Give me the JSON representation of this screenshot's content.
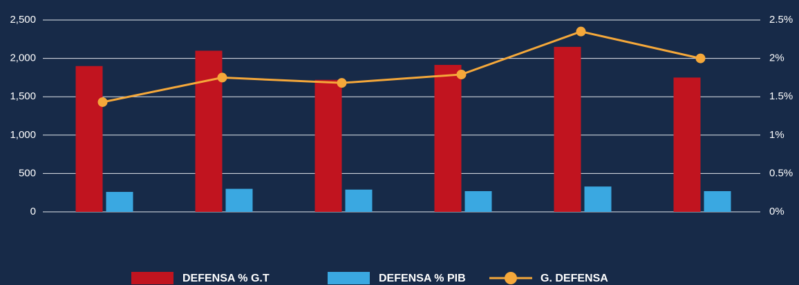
{
  "chart_data": {
    "type": "bar",
    "categories": [
      null,
      null,
      null,
      null,
      null,
      null
    ],
    "series": [
      {
        "name": "DEFENSA % G.T",
        "color": "#c1141f",
        "type": "bar",
        "values": [
          1900,
          2100,
          1720,
          1915,
          2150,
          1750
        ]
      },
      {
        "name": "DEFENSA % PIB",
        "color": "#3aa8e1",
        "type": "bar",
        "values": [
          260,
          300,
          290,
          270,
          330,
          270
        ]
      },
      {
        "name": "G. DEFENSA",
        "color": "#f5a83a",
        "type": "line",
        "axis": "y2",
        "values": [
          1.43,
          1.75,
          1.68,
          1.79,
          2.35,
          2.0
        ]
      }
    ],
    "ylim": [
      0,
      2500
    ],
    "yticks": [
      0,
      500,
      {
        "value": 1000,
        "label": "1,000"
      },
      {
        "value": 1500,
        "label": "1,500"
      },
      {
        "value": 2000,
        "label": "2,000"
      },
      {
        "value": 2500,
        "label": "2,500"
      }
    ],
    "y2lim": [
      0,
      2.5
    ],
    "y2ticks": [
      {
        "value": 0,
        "label": "0%"
      },
      {
        "value": 0.5,
        "label": "0.5%"
      },
      {
        "value": 1,
        "label": "1%"
      },
      {
        "value": 1.5,
        "label": "1.5%"
      },
      {
        "value": 2,
        "label": "2%"
      },
      {
        "value": 2.5,
        "label": "2.5%"
      }
    ],
    "grid": true,
    "legend": "bottom"
  }
}
